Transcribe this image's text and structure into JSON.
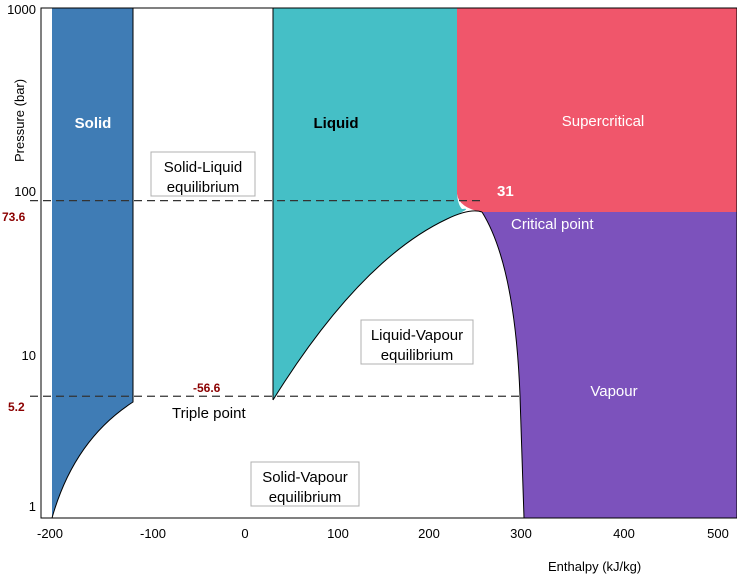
{
  "chart_data": {
    "type": "area",
    "title": "",
    "xlabel": "Enthalpy (kJ/kg)",
    "ylabel": "Pressure (bar)",
    "xlim": [
      -200,
      500
    ],
    "ylim": [
      1,
      1000
    ],
    "y_scale": "log",
    "x_ticks": [
      "-200",
      "-100",
      "0",
      "100",
      "200",
      "300",
      "400",
      "500"
    ],
    "y_ticks": [
      "1",
      "10",
      "100",
      "1000"
    ],
    "grid": false,
    "reference_lines": [
      {
        "pressure": 73.6,
        "label": "73.6"
      },
      {
        "pressure": 5.2,
        "label": "5.2"
      }
    ],
    "annotations": {
      "critical_temperature": "31",
      "triple_temperature": "-56.6",
      "critical_point": "Critical point",
      "triple_point": "Triple point"
    },
    "regions": [
      {
        "name": "Solid",
        "color": "#3f7cb5"
      },
      {
        "name": "Solid-Liquid equilibrium",
        "lines": [
          "Solid-Liquid",
          "equilibrium"
        ],
        "color": "#ffffff"
      },
      {
        "name": "Liquid",
        "color": "#45bfc6"
      },
      {
        "name": "Supercritical",
        "color": "#f0566b"
      },
      {
        "name": "Liquid-Vapour equilibrium",
        "lines": [
          "Liquid-Vapour",
          "equilibrium"
        ],
        "color": "#ffffff"
      },
      {
        "name": "Vapour",
        "color": "#7c52bc"
      },
      {
        "name": "Solid-Vapour equilibrium",
        "lines": [
          "Solid-Vapour",
          "equilibrium"
        ],
        "color": "#ffffff"
      }
    ]
  }
}
